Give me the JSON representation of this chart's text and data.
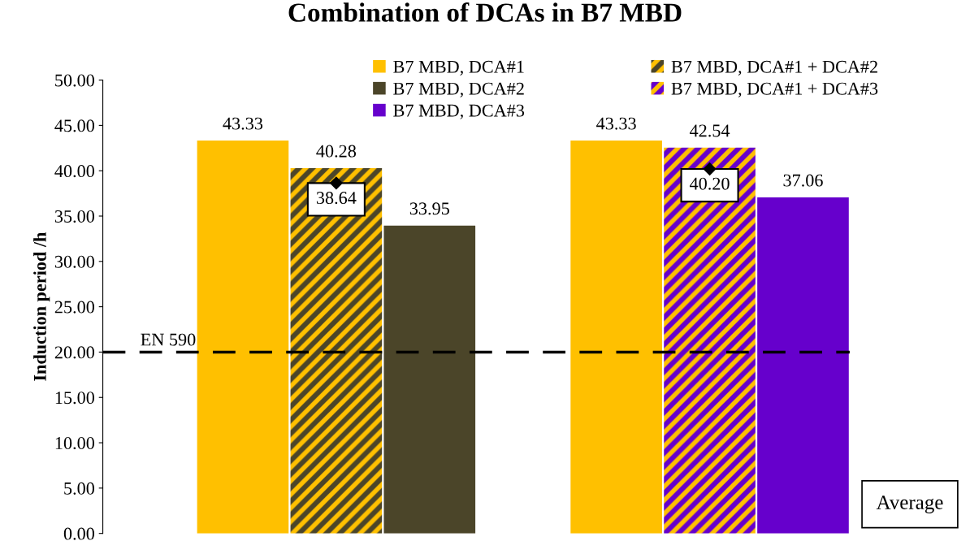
{
  "chart_data": {
    "type": "bar",
    "title": "Combination of DCAs in B7 MBD",
    "ylabel": "Induction period /h",
    "categories": [
      null,
      null,
      null,
      null,
      null,
      null,
      null,
      null
    ],
    "stacked": true,
    "series": [
      {
        "name": "B7 MBD, DCA#1",
        "color": "#ffc000",
        "values": [
          null,
          43.33,
          null,
          null,
          null,
          43.33,
          null,
          null
        ]
      },
      {
        "name": "B7 MBD, DCA#2",
        "color": "#4b4529",
        "values": [
          null,
          null,
          null,
          33.95,
          null,
          null,
          null,
          null
        ]
      },
      {
        "name": "B7 MBD, DCA#3",
        "color": "#6600cc",
        "values": [
          null,
          null,
          null,
          null,
          null,
          null,
          null,
          37.06
        ]
      },
      {
        "name": "B7 MBD, DCA#1 + DCA#2",
        "color": "#4b4529",
        "values": [
          null,
          null,
          40.28,
          null,
          null,
          null,
          null,
          null
        ]
      },
      {
        "name": "B7 MBD, DCA#1 + DCA#3",
        "color": "#6600cc",
        "values": [
          null,
          null,
          null,
          null,
          null,
          null,
          42.54,
          null
        ]
      },
      {
        "type": "scatter",
        "color": "#000000",
        "values": [
          null,
          null,
          38.64,
          null,
          null,
          null,
          40.2,
          null
        ],
        "value_labels": [
          null,
          null,
          "38.64",
          null,
          null,
          null,
          "40.20",
          null
        ]
      }
    ],
    "ylim": [
      0,
      50
    ],
    "yticks": [
      {
        "value": 0,
        "label": "0.00"
      },
      {
        "value": 5,
        "label": "5.00"
      },
      {
        "value": 10,
        "label": "10.00"
      },
      {
        "value": 15,
        "label": "15.00"
      },
      {
        "value": 20,
        "label": "20.00"
      },
      {
        "value": 25,
        "label": "25.00"
      },
      {
        "value": 30,
        "label": "30.00"
      },
      {
        "value": 35,
        "label": "35.00"
      },
      {
        "value": 40,
        "label": "40.00"
      },
      {
        "value": 45,
        "label": "45.00"
      },
      {
        "value": 50,
        "label": "50.00"
      }
    ],
    "ref_lines": [
      {
        "axis": "y",
        "value": 20,
        "label": "EN 590",
        "color": "#000000",
        "line_style": "dashed"
      }
    ],
    "annotations": [
      "Average"
    ],
    "data_labels": true,
    "grid": false,
    "legend": "top"
  }
}
